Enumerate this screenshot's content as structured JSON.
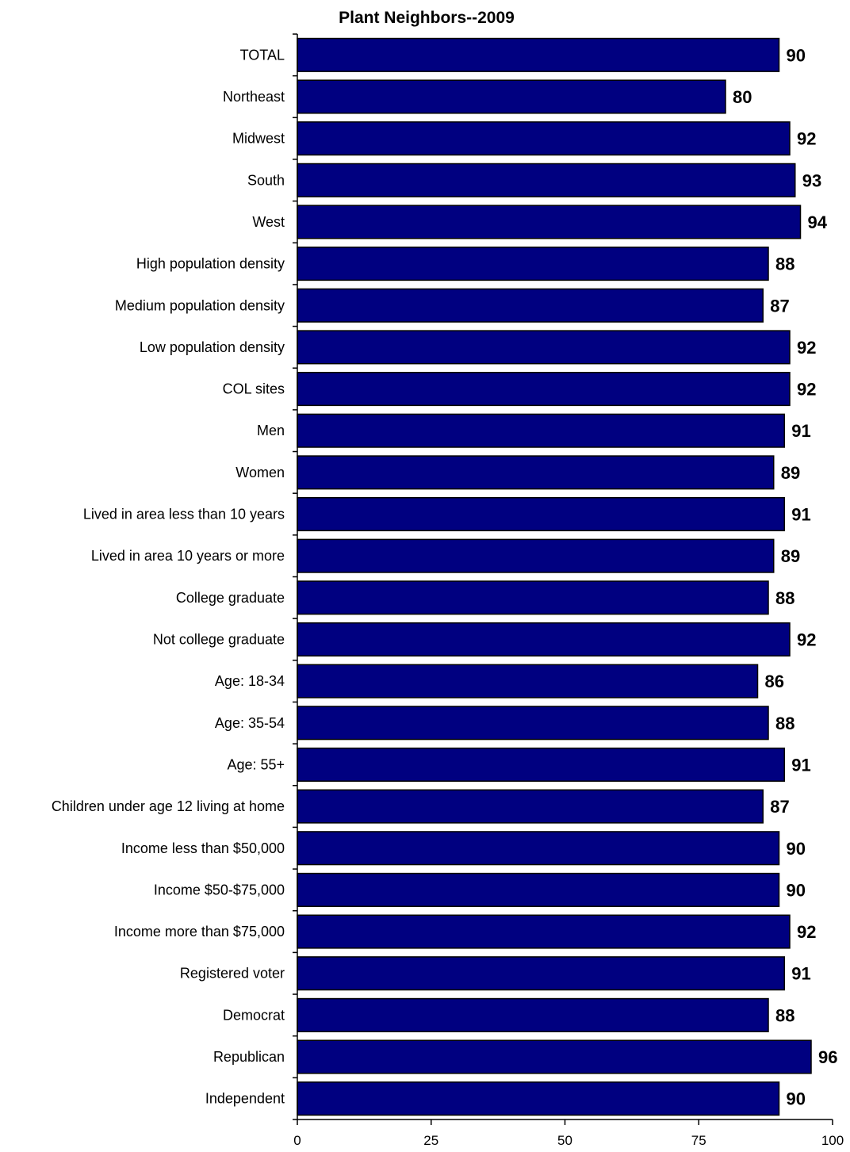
{
  "chart_data": {
    "type": "bar",
    "orientation": "horizontal",
    "title": "Plant Neighbors--2009",
    "categories": [
      "TOTAL",
      "Northeast",
      "Midwest",
      "South",
      "West",
      "High population density",
      "Medium population density",
      "Low population density",
      "COL sites",
      "Men",
      "Women",
      "Lived in area less than 10 years",
      "Lived in area 10 years or more",
      "College graduate",
      "Not college graduate",
      "Age:  18-34",
      "Age:  35-54",
      "Age:  55+",
      "Children under age 12 living at home",
      "Income less than $50,000",
      "Income $50-$75,000",
      "Income more than $75,000",
      "Registered voter",
      "Democrat",
      "Republican",
      "Independent"
    ],
    "values": [
      90,
      80,
      92,
      93,
      94,
      88,
      87,
      92,
      92,
      91,
      89,
      91,
      89,
      88,
      92,
      86,
      88,
      91,
      87,
      90,
      90,
      92,
      91,
      88,
      96,
      90
    ],
    "xlim": [
      0,
      100
    ],
    "xticks": [
      0,
      25,
      50,
      75,
      100
    ],
    "xlabel": "",
    "ylabel": "",
    "grid": false,
    "legend": "none",
    "colors": {
      "bar_fill": "#000080",
      "bar_stroke": "#000000",
      "axis": "#000000"
    }
  }
}
